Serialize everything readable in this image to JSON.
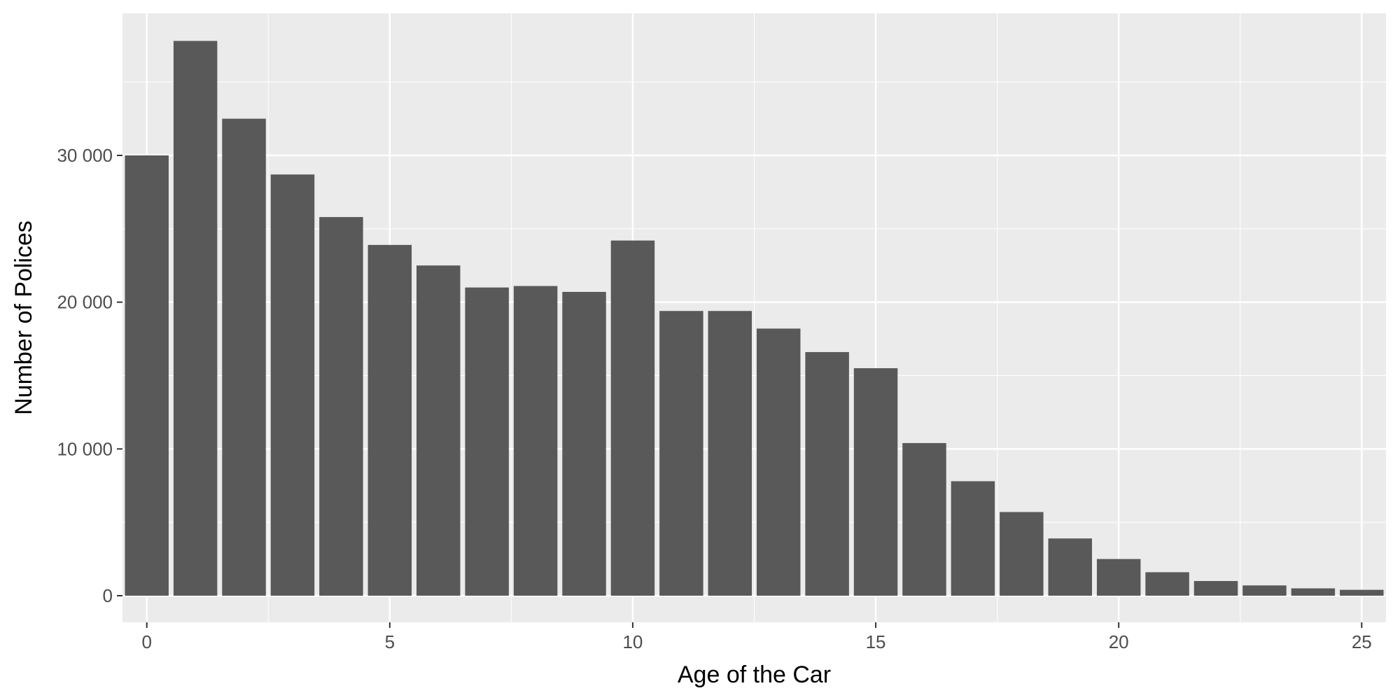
{
  "chart_data": {
    "type": "bar",
    "xlabel": "Age of the Car",
    "ylabel": "Number of Polices",
    "x": [
      0,
      1,
      2,
      3,
      4,
      5,
      6,
      7,
      8,
      9,
      10,
      11,
      12,
      13,
      14,
      15,
      16,
      17,
      18,
      19,
      20,
      21,
      22,
      23,
      24,
      25
    ],
    "values": [
      30000,
      37800,
      32500,
      28700,
      25800,
      23900,
      22500,
      21000,
      21100,
      20700,
      24200,
      19400,
      19400,
      18200,
      16600,
      15500,
      10400,
      7800,
      5700,
      3900,
      2500,
      1600,
      1000,
      700,
      500,
      400
    ],
    "xlim": [
      -0.5,
      25.5
    ],
    "ylim": [
      0,
      38000
    ],
    "x_ticks": [
      0,
      5,
      10,
      15,
      20,
      25
    ],
    "x_tick_labels": [
      "0",
      "5",
      "10",
      "15",
      "20",
      "25"
    ],
    "y_ticks": [
      0,
      10000,
      20000,
      30000
    ],
    "y_tick_labels": [
      "0",
      "10 000",
      "20 000",
      "30 000"
    ],
    "grid": true,
    "colors": {
      "bar": "#595959",
      "panel": "#ebebeb",
      "grid": "#ffffff",
      "tick": "#333333"
    }
  }
}
